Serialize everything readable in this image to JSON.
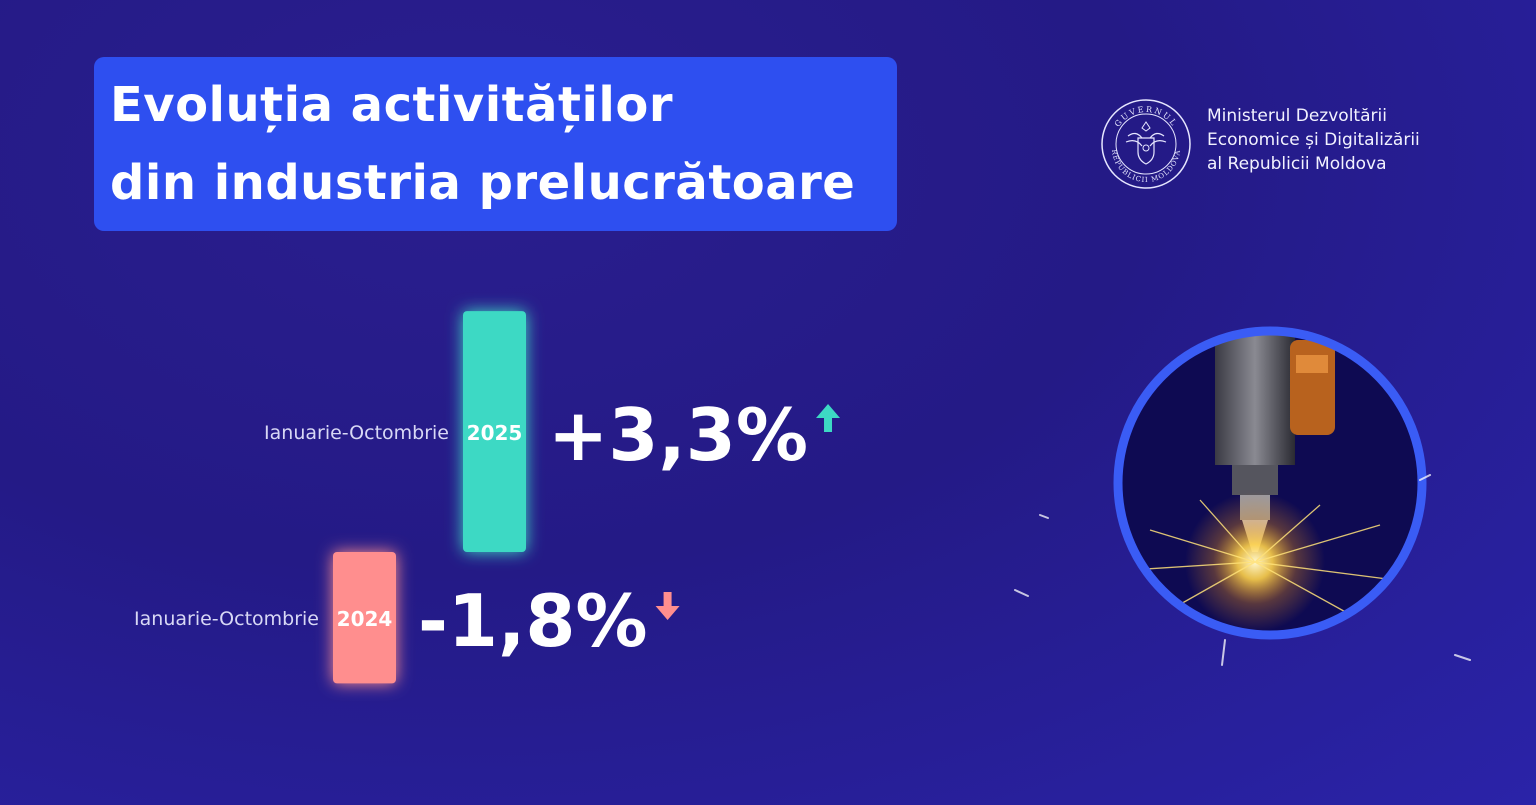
{
  "header": {
    "title_line1": "Evoluția activităților",
    "title_line2": "din industria prelucrătoare"
  },
  "ministry": {
    "line1": "Ministerul Dezvoltării",
    "line2": "Economice și Digitalizării",
    "line3": "al Republicii Moldova",
    "seal_text_top": "GUVERNUL",
    "seal_text_bottom": "REPUBLICII MOLDOVA"
  },
  "colors": {
    "background": "#241a86",
    "title_box": "#2e4ff0",
    "positive": "#3dd9c4",
    "negative": "#ff8e8e",
    "ring": "#3a5cf5"
  },
  "chart_data": {
    "type": "bar",
    "orientation": "vertical",
    "baseline": 0,
    "categories": [
      "2025",
      "2024"
    ],
    "row_labels": [
      "Ianuarie-Octombrie",
      "Ianuarie-Octombrie"
    ],
    "values": [
      3.3,
      -1.8
    ],
    "value_labels": [
      "+3,3%",
      "-1,8%"
    ],
    "trend_icons": [
      "arrow-up",
      "arrow-down"
    ],
    "unit": "%"
  }
}
